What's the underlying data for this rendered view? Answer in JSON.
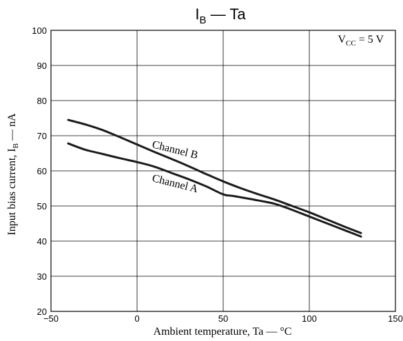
{
  "chart_data": {
    "type": "line",
    "title": {
      "main": "I",
      "sub": "B",
      "rest": " — Ta"
    },
    "xlabel": "Ambient temperature, Ta — °C",
    "ylabel": {
      "main": "Input bias current, I",
      "sub": "B",
      "rest": " — nA"
    },
    "xlim": [
      -50,
      150
    ],
    "ylim": [
      20,
      100
    ],
    "xticks": [
      -50,
      0,
      50,
      100,
      150
    ],
    "xtick_labels": [
      "−50",
      "0",
      "50",
      "100",
      "150"
    ],
    "yticks": [
      20,
      30,
      40,
      50,
      60,
      70,
      80,
      90,
      100
    ],
    "ytick_labels": [
      "20",
      "30",
      "40",
      "50",
      "60",
      "70",
      "80",
      "90",
      "100"
    ],
    "grid": true,
    "annotation": {
      "main": "V",
      "sub": "CC",
      "rest": " = 5 V"
    },
    "series": [
      {
        "name": "Channel B",
        "x": [
          -40,
          -30,
          -20,
          -10,
          0,
          10,
          20,
          30,
          40,
          50,
          60,
          70,
          80,
          90,
          100,
          110,
          120,
          130
        ],
        "y": [
          74.5,
          73.2,
          71.6,
          69.6,
          67.5,
          65.4,
          63.4,
          61.3,
          59.1,
          57.0,
          55.1,
          53.4,
          51.8,
          50.0,
          48.2,
          46.2,
          44.2,
          42.3
        ]
      },
      {
        "name": "Channel A",
        "x": [
          -40,
          -30,
          -20,
          -10,
          0,
          10,
          20,
          30,
          40,
          50,
          55,
          60,
          70,
          80,
          90,
          100,
          110,
          120,
          130
        ],
        "y": [
          67.8,
          66.0,
          64.8,
          63.6,
          62.5,
          61.2,
          59.4,
          57.6,
          55.6,
          53.3,
          52.9,
          52.5,
          51.6,
          50.6,
          48.9,
          47.0,
          45.1,
          43.2,
          41.3
        ]
      }
    ]
  }
}
